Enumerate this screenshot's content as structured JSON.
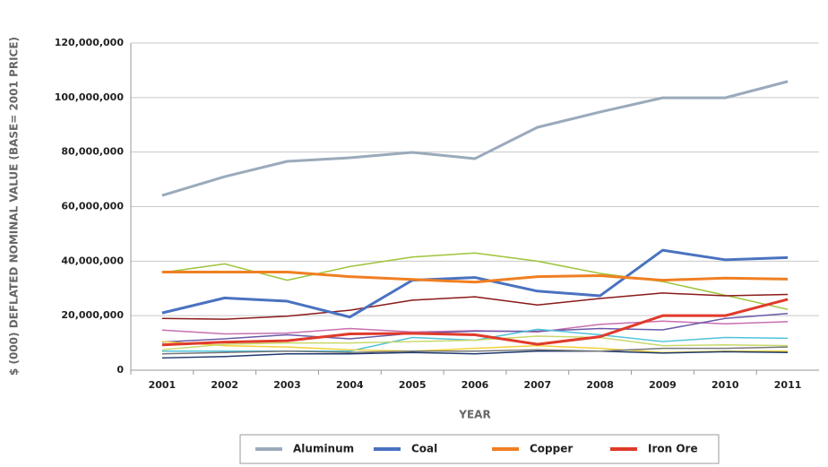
{
  "chart_data": {
    "type": "line",
    "x_label": "YEAR",
    "y_label": "$ (000) DEFLATED NOMINAL VALUE  (BASE= 2001 PRICE)",
    "categories": [
      "2001",
      "2002",
      "2003",
      "2004",
      "2005",
      "2006",
      "2007",
      "2008",
      "2009",
      "2010",
      "2011"
    ],
    "ylim": [
      0,
      120000000
    ],
    "yticks": [
      0,
      {
        "value": 20000000,
        "label": "20,000,000"
      },
      {
        "value": 40000000,
        "label": "40,000,000"
      },
      {
        "value": 60000000,
        "label": "60,000,000"
      },
      {
        "value": 80000000,
        "label": "80,000,000"
      },
      {
        "value": 100000000,
        "label": "100,000,000"
      },
      {
        "value": 120000000,
        "label": "120,000,000"
      }
    ],
    "grid": true,
    "legend": "bottom",
    "series": [
      {
        "color": "#9dc43a",
        "values": [
          35800000,
          39000000,
          33000000,
          38000000,
          41500000,
          43000000,
          40000000,
          35500000,
          32500000,
          27500000,
          22300000
        ]
      },
      {
        "color": "#8b1a1a",
        "values": [
          19000000,
          18700000,
          19800000,
          22000000,
          25700000,
          26900000,
          23900000,
          26300000,
          28300000,
          27300000,
          27800000
        ]
      },
      {
        "color": "#c76fb0",
        "values": [
          14700000,
          13300000,
          13600000,
          15300000,
          14000000,
          14500000,
          14000000,
          16800000,
          18000000,
          17000000,
          17800000
        ]
      },
      {
        "color": "#6b5aa8",
        "values": [
          10300000,
          11500000,
          13000000,
          11500000,
          13500000,
          14300000,
          14300000,
          15300000,
          14800000,
          19000000,
          20800000
        ]
      },
      {
        "color": "#4fc3d9",
        "values": [
          7000000,
          7000000,
          7000000,
          7000000,
          12000000,
          11000000,
          15000000,
          13000000,
          10500000,
          12000000,
          11700000
        ]
      },
      {
        "color": "#f2d03b",
        "values": [
          10500000,
          9000000,
          8500000,
          7500000,
          7000000,
          8000000,
          9000000,
          8000000,
          6500000,
          7000000,
          7000000
        ]
      },
      {
        "color": "#c8d86a",
        "values": [
          7500000,
          9500000,
          10000000,
          10000000,
          10500000,
          11000000,
          12500000,
          12000000,
          9000000,
          9300000,
          9000000
        ]
      },
      {
        "color": "#1f3a6e",
        "values": [
          4500000,
          5000000,
          6000000,
          6000000,
          6500000,
          6000000,
          7000000,
          7000000,
          6300000,
          6800000,
          6500000
        ]
      },
      {
        "color": "#777777",
        "values": [
          6000000,
          6500000,
          7000000,
          6500000,
          7000000,
          7000000,
          7500000,
          7000000,
          8000000,
          8000000,
          8500000
        ]
      },
      {
        "name": "Aluminum",
        "color": "#9aaabb",
        "width": 3,
        "values": [
          64100000,
          71000000,
          76600000,
          77900000,
          79900000,
          77600000,
          89100000,
          94700000,
          99900000,
          99900000,
          105900000
        ]
      },
      {
        "name": "Coal",
        "color": "#4a72c0",
        "width": 3,
        "values": [
          21000000,
          26500000,
          25300000,
          19500000,
          33000000,
          34000000,
          29000000,
          27300000,
          44000000,
          40500000,
          41300000
        ]
      },
      {
        "name": "Copper",
        "color": "#f07f22",
        "width": 3,
        "values": [
          36000000,
          36000000,
          36000000,
          34300000,
          33300000,
          32300000,
          34300000,
          34700000,
          33000000,
          33800000,
          33400000
        ]
      },
      {
        "name": "Iron Ore",
        "color": "#e03a2a",
        "width": 3,
        "values": [
          9300000,
          10300000,
          10800000,
          13300000,
          13500000,
          13000000,
          9500000,
          12300000,
          20000000,
          20000000,
          26000000
        ]
      }
    ]
  }
}
